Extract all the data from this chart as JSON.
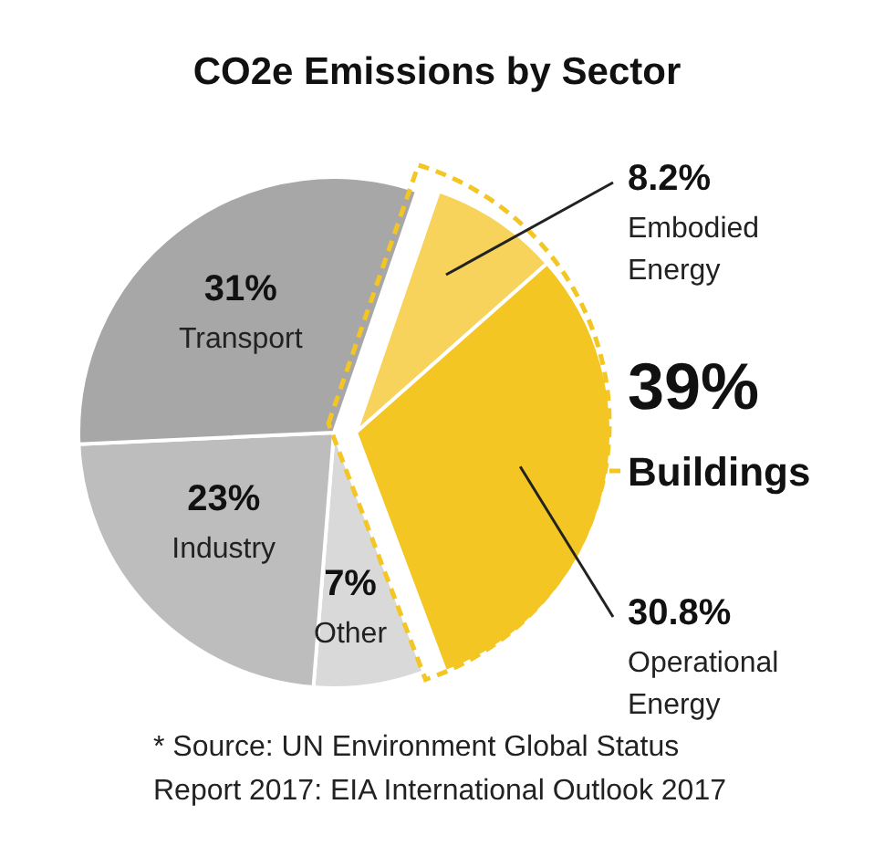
{
  "chart_data": {
    "type": "pie",
    "title": "CO2e Emissions by Sector",
    "categories": [
      "Embodied Energy",
      "Operational Energy",
      "Other",
      "Industry",
      "Transport"
    ],
    "values": [
      8.2,
      30.8,
      7,
      23,
      31
    ],
    "value_labels": [
      "8.2%",
      "30.8%",
      "7%",
      "23%",
      "31%"
    ],
    "colors": [
      "#f7d35c",
      "#f3c623",
      "#d9d9d9",
      "#bdbdbd",
      "#a7a7a7"
    ],
    "annotations": [
      "39%",
      "Buildings",
      "* Source: UN Environment Global Status Report 2017: EIA International Outlook 2017"
    ]
  }
}
